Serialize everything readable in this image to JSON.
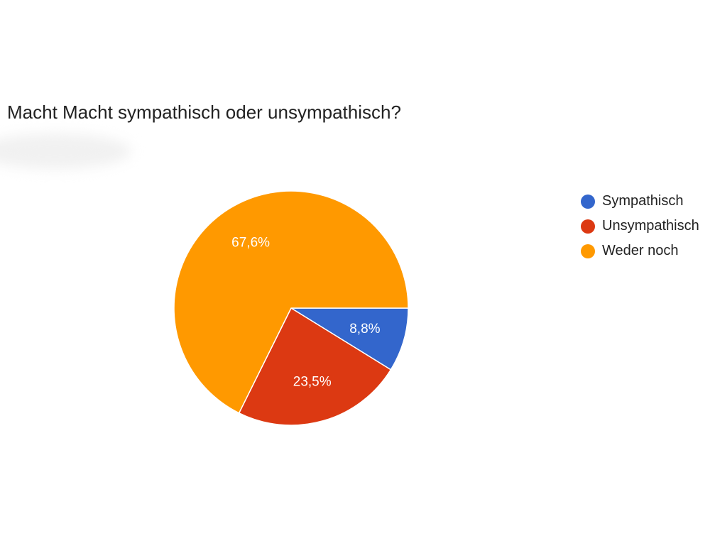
{
  "chart_data": {
    "type": "pie",
    "title": "Macht Macht sympathisch oder unsympathisch?",
    "legend_position": "right",
    "series": [
      {
        "name": "Sympathisch",
        "value": 8.8,
        "label": "8,8%",
        "color": "#3366cc"
      },
      {
        "name": "Unsympathisch",
        "value": 23.5,
        "label": "23,5%",
        "color": "#dc3912"
      },
      {
        "name": "Weder noch",
        "value": 67.6,
        "label": "67,6%",
        "color": "#ff9900"
      }
    ]
  }
}
